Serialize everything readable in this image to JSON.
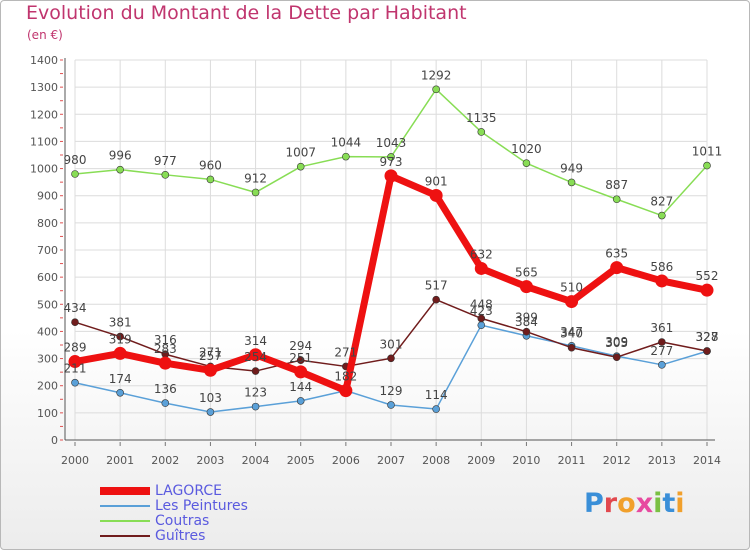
{
  "header": {
    "title": "Evolution du Montant de la Dette par Habitant",
    "unit": "(en €)"
  },
  "logo": {
    "text": "Proxiti"
  },
  "chart_data": {
    "type": "line",
    "title": "Evolution du Montant de la Dette par Habitant",
    "subtitle": "(en €)",
    "x": [
      "2000",
      "2001",
      "2002",
      "2003",
      "2004",
      "2005",
      "2006",
      "2007",
      "2008",
      "2009",
      "2010",
      "2011",
      "2012",
      "2013",
      "2014"
    ],
    "yticks": [
      0,
      100,
      200,
      300,
      400,
      500,
      600,
      700,
      800,
      900,
      1000,
      1100,
      1200,
      1300,
      1400
    ],
    "ylim": [
      0,
      1400
    ],
    "grid": true,
    "legend_position": "bottom-left",
    "series": [
      {
        "name": "LAGORCE",
        "color": "#ee1111",
        "values": [
          289,
          319,
          283,
          257,
          314,
          251,
          182,
          973,
          901,
          632,
          565,
          510,
          635,
          586,
          552
        ],
        "labels": [
          "289",
          "319",
          "283",
          "257",
          "314",
          "251",
          "182",
          "973",
          "901",
          "632",
          "565",
          "510",
          "635",
          "586",
          "552"
        ]
      },
      {
        "name": "Les Peintures",
        "color": "#5aa0d8",
        "values": [
          211,
          174,
          136,
          103,
          123,
          144,
          182,
          129,
          114,
          423,
          384,
          347,
          309,
          277,
          327
        ],
        "labels": [
          "211",
          "174",
          "136",
          "103",
          "123",
          "144",
          "",
          "129",
          "114",
          "423",
          "384",
          "347",
          "309",
          "277",
          "327"
        ]
      },
      {
        "name": "Coutras",
        "color": "#88dd55",
        "values": [
          980,
          996,
          977,
          960,
          912,
          1007,
          1044,
          1043,
          1292,
          1135,
          1020,
          949,
          887,
          827,
          1011
        ],
        "labels": [
          "980",
          "996",
          "977",
          "960",
          "912",
          "1007",
          "1044",
          "1043",
          "1292",
          "1135",
          "1020",
          "949",
          "887",
          "827",
          "1011"
        ]
      },
      {
        "name": "Guîtres",
        "color": "#701c1c",
        "values": [
          434,
          381,
          316,
          271,
          254,
          294,
          271,
          301,
          517,
          448,
          399,
          340,
          305,
          361,
          328
        ],
        "labels": [
          "434",
          "381",
          "316",
          "271",
          "254",
          "294",
          "271",
          "301",
          "517",
          "448",
          "399",
          "340",
          "305",
          "361",
          "328"
        ]
      }
    ]
  }
}
